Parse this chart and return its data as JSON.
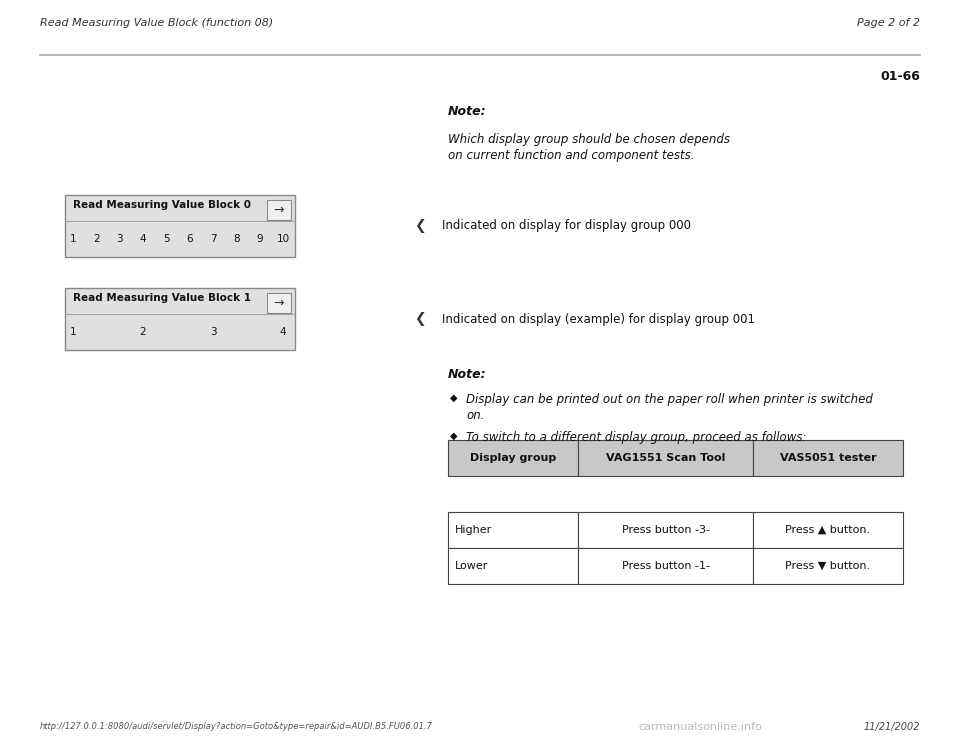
{
  "header_left": "Read Measuring Value Block (function 08)",
  "header_right": "Page 2 of 2",
  "page_num": "01-66",
  "note_label": "Note:",
  "note_text1": "Which display group should be chosen depends",
  "note_text2": "on current function and component tests.",
  "block0_title": "Read Measuring Value Block 0",
  "block0_numbers": [
    "1",
    "2",
    "3",
    "4",
    "5",
    "6",
    "7",
    "8",
    "9",
    "10"
  ],
  "block1_title": "Read Measuring Value Block 1",
  "block1_numbers": [
    "1",
    "2",
    "3",
    "4"
  ],
  "arrow_char": "→",
  "indicator_arrow": "❮",
  "bullet": "◆",
  "indicator_text0": "Indicated on display for display group 000",
  "indicator_text1": "Indicated on display (example) for display group 001",
  "note2_label": "Note:",
  "note2_bullet1a": "Display can be printed out on the paper roll when printer is switched",
  "note2_bullet1b": "on.",
  "note2_bullet2": "To switch to a different display group, proceed as follows:",
  "table_headers": [
    "Display group",
    "VAG1551 Scan Tool",
    "VAS5051 tester"
  ],
  "table_row1": [
    "Higher",
    "Press button -3-",
    "Press ▲ button."
  ],
  "table_row2": [
    "Lower",
    "Press button -1-",
    "Press ▼ button."
  ],
  "footer_url": "http://127.0.0.1:8080/audi/servlet/Display?action=Goto&type=repair&id=AUDI.B5.FU06.01.7",
  "footer_right": "11/21/2002",
  "watermark": "carmanualsonline.info",
  "bg_color": "#ffffff",
  "header_color": "#333333",
  "box_bg": "#e0e0e0",
  "box_border": "#888888",
  "table_header_bg": "#c8c8c8",
  "table_border": "#444444"
}
